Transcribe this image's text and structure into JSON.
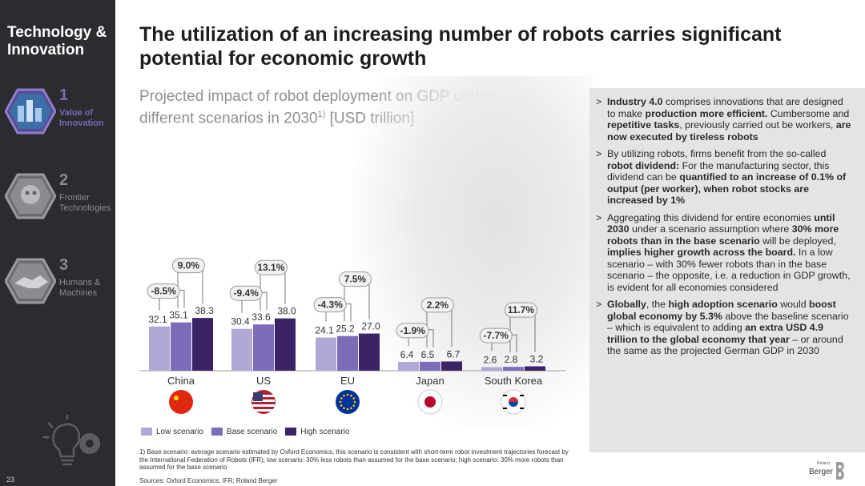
{
  "sidebar": {
    "title": "Technology & Innovation",
    "items": [
      {
        "number": "1",
        "label": "Value of Innovation",
        "active": true
      },
      {
        "number": "2",
        "label": "Frontier Technologies",
        "active": false
      },
      {
        "number": "3",
        "label": "Humans & Machines",
        "active": false
      }
    ],
    "page_number": "23"
  },
  "header": {
    "title": "The utilization of an increasing number of robots carries significant potential for economic growth"
  },
  "chart_heading": {
    "text": "Projected impact of robot deployment on GDP under different scenarios in 2030",
    "footnote_marker": "1)",
    "unit": "[USD trillion]"
  },
  "chart_data": {
    "type": "bar",
    "categories": [
      "China",
      "US",
      "EU",
      "Japan",
      "South Korea"
    ],
    "series": [
      {
        "name": "Low scenario",
        "values": [
          32.1,
          30.4,
          24.1,
          6.4,
          2.6
        ],
        "labels": [
          "32.1",
          "30.4",
          "24.1",
          "6.4",
          "2.6"
        ]
      },
      {
        "name": "Base scenario",
        "values": [
          35.1,
          33.6,
          25.2,
          6.5,
          2.8
        ],
        "labels": [
          "35.1",
          "33.6",
          "25.2",
          "6.5",
          "2.8"
        ]
      },
      {
        "name": "High scenario",
        "values": [
          38.3,
          38.0,
          27.0,
          6.7,
          3.2
        ],
        "labels": [
          "38.3",
          "38.0",
          "27.0",
          "6.7",
          "3.2"
        ]
      }
    ],
    "low_change": [
      "-8.5%",
      "-9.4%",
      "-4.3%",
      "-1.9%",
      "-7.7%"
    ],
    "high_change": [
      "9.0%",
      "13.1%",
      "7.5%",
      "2.2%",
      "11.7%"
    ],
    "ylim": [
      0,
      40
    ],
    "colors": [
      "#b2a8d6",
      "#7e6cb8",
      "#3b2466"
    ],
    "grid": false,
    "legend": "bottom-left",
    "flag_icons": [
      "china-flag-icon",
      "us-flag-icon",
      "eu-flag-icon",
      "japan-flag-icon",
      "south-korea-flag-icon"
    ]
  },
  "legend": {
    "low": "Low scenario",
    "base": "Base scenario",
    "high": "High scenario"
  },
  "footnote": "1) Base scenario: average scenario estimated by Oxford Economics, this scenario is consistent with short-term robot investment trajectories forecast by the International Federation of Robots (IFR); low scenario: 30% less robots than assumed for the base scenario; high scenario: 30% more robots than assumed for the base scenario",
  "sources": "Sources: Oxford Economics; IFR; Roland Berger",
  "info_panel": {
    "marker": ">",
    "bullets": [
      [
        {
          "t": "Industry 4.0",
          "b": true
        },
        {
          "t": " comprises innovations that are designed to make ",
          "b": false
        },
        {
          "t": "production more efficient.",
          "b": true
        },
        {
          "t": " Cumbersome and ",
          "b": false
        },
        {
          "t": "repetitive tasks",
          "b": true
        },
        {
          "t": ", previously carried out be workers, ",
          "b": false
        },
        {
          "t": "are now executed by tireless robots",
          "b": true
        }
      ],
      [
        {
          "t": "By utilizing robots, firms benefit from the so-called ",
          "b": false
        },
        {
          "t": "robot dividend:",
          "b": true
        },
        {
          "t": " For the manufacturing sector, this dividend can be ",
          "b": false
        },
        {
          "t": "quantified to an increase of 0.1% of output (per worker), when robot stocks are increased by 1%",
          "b": true
        }
      ],
      [
        {
          "t": "Aggregating this dividend for entire economies ",
          "b": false
        },
        {
          "t": "until 2030",
          "b": true
        },
        {
          "t": " under a scenario assumption where ",
          "b": false
        },
        {
          "t": "30% more robots than in the base scenario",
          "b": true
        },
        {
          "t": " will be deployed, ",
          "b": false
        },
        {
          "t": "implies higher growth across the board.",
          "b": true
        },
        {
          "t": " In a low scenario – with 30% fewer robots than in the base scenario – the opposite, i.e. a reduction in GDP growth, is evident for all economies considered",
          "b": false
        }
      ],
      [
        {
          "t": "Globally",
          "b": true
        },
        {
          "t": ", the ",
          "b": false
        },
        {
          "t": "high adoption scenario",
          "b": true
        },
        {
          "t": " would ",
          "b": false
        },
        {
          "t": "boost global economy by 5.3%",
          "b": true
        },
        {
          "t": " above the baseline scenario – which is equivalent to adding ",
          "b": false
        },
        {
          "t": "an extra USD 4.9 trillion to the global economy that year",
          "b": true
        },
        {
          "t": " – or around the same as the projected German GDP in 2030",
          "b": false
        }
      ]
    ]
  },
  "logo": {
    "small": "Roland",
    "text": "Berger",
    "icon": "roland-berger-logo-icon"
  }
}
